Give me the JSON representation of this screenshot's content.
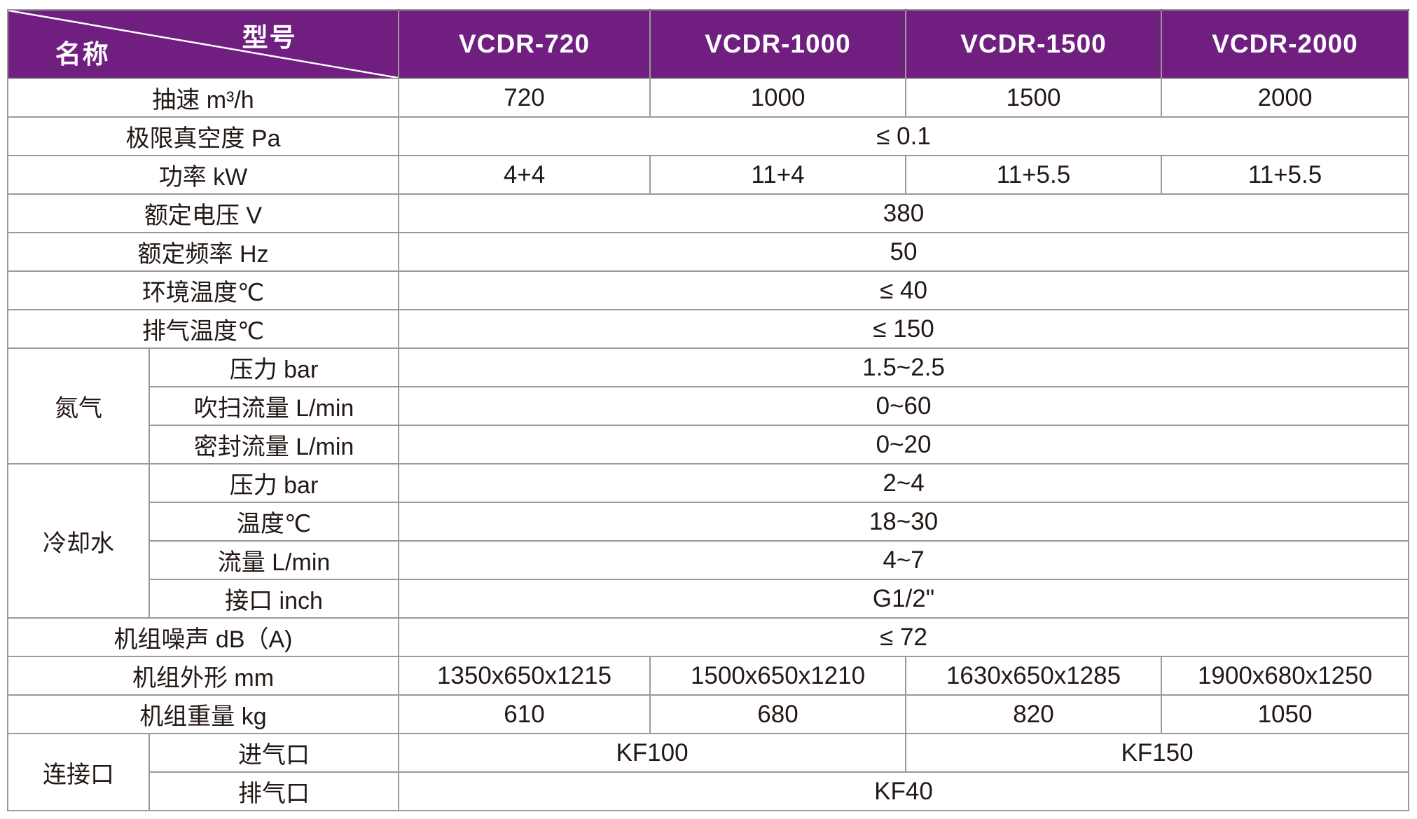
{
  "theme": {
    "header_bg": "#701f80",
    "header_text": "#ffffff",
    "body_text": "#231815",
    "grid_line": "#9a9a9a"
  },
  "table": {
    "corner": {
      "top_right": "型号",
      "bottom_left": "名称"
    },
    "models": [
      "VCDR-720",
      "VCDR-1000",
      "VCDR-1500",
      "VCDR-2000"
    ],
    "rows": [
      {
        "cells": [
          {
            "text": "抽速 m³/h",
            "colspan": 2,
            "cls": "label"
          },
          {
            "text": "720",
            "cls": "value"
          },
          {
            "text": "1000",
            "cls": "value"
          },
          {
            "text": "1500",
            "cls": "value"
          },
          {
            "text": "2000",
            "cls": "value"
          }
        ]
      },
      {
        "cells": [
          {
            "text": "极限真空度 Pa",
            "colspan": 2,
            "cls": "label"
          },
          {
            "text": "≤ 0.1",
            "colspan": 4,
            "cls": "value"
          }
        ]
      },
      {
        "cells": [
          {
            "text": "功率 kW",
            "colspan": 2,
            "cls": "label"
          },
          {
            "text": "4+4",
            "cls": "value"
          },
          {
            "text": "11+4",
            "cls": "value"
          },
          {
            "text": "11+5.5",
            "cls": "value"
          },
          {
            "text": "11+5.5",
            "cls": "value"
          }
        ]
      },
      {
        "cells": [
          {
            "text": "额定电压 V",
            "colspan": 2,
            "cls": "label"
          },
          {
            "text": "380",
            "colspan": 4,
            "cls": "value"
          }
        ]
      },
      {
        "cells": [
          {
            "text": "额定频率 Hz",
            "colspan": 2,
            "cls": "label"
          },
          {
            "text": "50",
            "colspan": 4,
            "cls": "value"
          }
        ]
      },
      {
        "cells": [
          {
            "text": "环境温度℃",
            "colspan": 2,
            "cls": "label"
          },
          {
            "text": "≤ 40",
            "colspan": 4,
            "cls": "value"
          }
        ]
      },
      {
        "cells": [
          {
            "text": "排气温度℃",
            "colspan": 2,
            "cls": "label"
          },
          {
            "text": "≤ 150",
            "colspan": 4,
            "cls": "value"
          }
        ]
      },
      {
        "cells": [
          {
            "text": "氮气",
            "rowspan": 3,
            "cls": "group"
          },
          {
            "text": "压力 bar",
            "cls": "label"
          },
          {
            "text": "1.5~2.5",
            "colspan": 4,
            "cls": "value"
          }
        ]
      },
      {
        "cells": [
          {
            "text": "吹扫流量 L/min",
            "cls": "label"
          },
          {
            "text": "0~60",
            "colspan": 4,
            "cls": "value"
          }
        ]
      },
      {
        "cells": [
          {
            "text": "密封流量 L/min",
            "cls": "label"
          },
          {
            "text": "0~20",
            "colspan": 4,
            "cls": "value"
          }
        ]
      },
      {
        "cells": [
          {
            "text": "冷却水",
            "rowspan": 4,
            "cls": "group"
          },
          {
            "text": "压力 bar",
            "cls": "label"
          },
          {
            "text": "2~4",
            "colspan": 4,
            "cls": "value"
          }
        ]
      },
      {
        "cells": [
          {
            "text": "温度℃",
            "cls": "label"
          },
          {
            "text": "18~30",
            "colspan": 4,
            "cls": "value"
          }
        ]
      },
      {
        "cells": [
          {
            "text": "流量 L/min",
            "cls": "label"
          },
          {
            "text": "4~7",
            "colspan": 4,
            "cls": "value"
          }
        ]
      },
      {
        "cells": [
          {
            "text": "接口 inch",
            "cls": "label"
          },
          {
            "text": "G1/2\"",
            "colspan": 4,
            "cls": "value"
          }
        ]
      },
      {
        "cells": [
          {
            "text": "机组噪声 dB（A)",
            "colspan": 2,
            "cls": "label"
          },
          {
            "text": "≤ 72",
            "colspan": 4,
            "cls": "value"
          }
        ]
      },
      {
        "cells": [
          {
            "text": "机组外形 mm",
            "colspan": 2,
            "cls": "label"
          },
          {
            "text": "1350x650x1215",
            "cls": "value"
          },
          {
            "text": "1500x650x1210",
            "cls": "value"
          },
          {
            "text": "1630x650x1285",
            "cls": "value"
          },
          {
            "text": "1900x680x1250",
            "cls": "value"
          }
        ]
      },
      {
        "cells": [
          {
            "text": "机组重量 kg",
            "colspan": 2,
            "cls": "label"
          },
          {
            "text": "610",
            "cls": "value"
          },
          {
            "text": "680",
            "cls": "value"
          },
          {
            "text": "820",
            "cls": "value"
          },
          {
            "text": "1050",
            "cls": "value"
          }
        ]
      },
      {
        "cells": [
          {
            "text": "连接口",
            "rowspan": 2,
            "cls": "group"
          },
          {
            "text": "进气口",
            "cls": "label"
          },
          {
            "text": "KF100",
            "colspan": 2,
            "cls": "value"
          },
          {
            "text": "KF150",
            "colspan": 2,
            "cls": "value"
          }
        ]
      },
      {
        "cells": [
          {
            "text": "排气口",
            "cls": "label"
          },
          {
            "text": "KF40",
            "colspan": 4,
            "cls": "value"
          }
        ]
      }
    ]
  }
}
